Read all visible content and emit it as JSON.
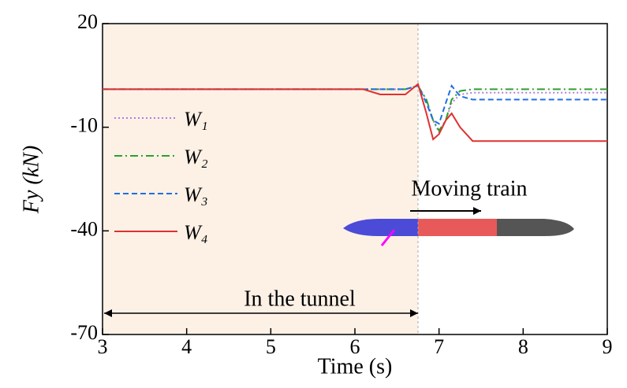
{
  "chart_data": {
    "type": "line",
    "x": [
      3,
      6.1,
      6.3,
      6.5,
      6.6,
      6.75,
      6.85,
      6.93,
      7.0,
      7.08,
      7.15,
      7.25,
      7.4,
      7.6,
      9
    ],
    "series": [
      {
        "name": "W₁",
        "color": "#b07fd8",
        "dash": "2,3",
        "values": [
          1,
          1,
          1,
          1,
          1,
          2,
          -2,
          -8,
          -11.5,
          -8,
          -3,
          -0.5,
          0,
          0,
          0
        ]
      },
      {
        "name": "W₂",
        "color": "#2ca02c",
        "dash": "10,4,2,4",
        "values": [
          1,
          1,
          1,
          1,
          1,
          2,
          -2,
          -8,
          -11,
          -8,
          -2,
          0.5,
          1,
          1,
          1
        ]
      },
      {
        "name": "W₃",
        "color": "#1f6fe0",
        "dash": "7,4",
        "values": [
          1,
          1,
          1,
          1,
          1,
          2,
          -3,
          -8,
          -9,
          -3,
          2,
          -1,
          -2,
          -2,
          -2
        ]
      },
      {
        "name": "W₄",
        "color": "#e03030",
        "dash": "none",
        "values": [
          1,
          1,
          -0.5,
          -0.5,
          -0.5,
          2.5,
          -6,
          -13.5,
          -12,
          -8,
          -6,
          -10,
          -14,
          -14,
          -14
        ]
      }
    ],
    "xlabel": "Time (s)",
    "ylabel": "Fy (kN)",
    "xlim": [
      3,
      9
    ],
    "xticks": [
      3,
      4,
      5,
      6,
      7,
      8,
      9
    ],
    "ylim": [
      -70,
      20
    ],
    "yticks": [
      -70,
      -40,
      -10,
      20
    ],
    "annotations": [
      "In the tunnel",
      "Moving train"
    ],
    "tunnel_end": 6.75
  }
}
